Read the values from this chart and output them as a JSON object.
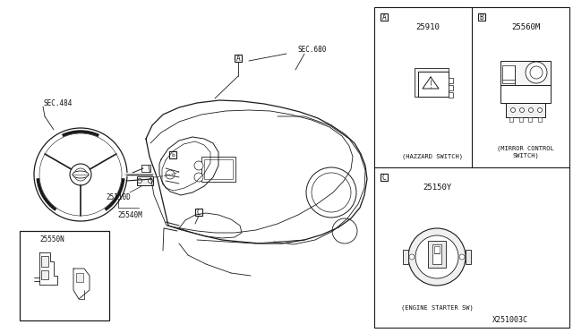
{
  "bg_color": "#ffffff",
  "line_color": "#1a1a1a",
  "mid_gray": "#777777",
  "fig_width": 6.4,
  "fig_height": 3.72,
  "dpi": 100,
  "diagram_code": "X251003C",
  "labels": {
    "sec484": "SEC.484",
    "sec680": "SEC.680",
    "p25110d": "25110D",
    "p25540m": "25540M",
    "p25550n": "25550N",
    "p25910": "25910",
    "p25560m": "25560M",
    "p25150y": "25150Y",
    "hazzard": "(HAZZARD SWITCH)",
    "mirror_l1": "(MIRROR CONTROL",
    "mirror_l2": "SWITCH)",
    "engine": "(ENGINE STARTER SW)",
    "box_a": "A",
    "box_b": "B",
    "box_c": "C"
  },
  "font_tiny": 5.5,
  "font_small": 6.5,
  "font_label": 5.0
}
